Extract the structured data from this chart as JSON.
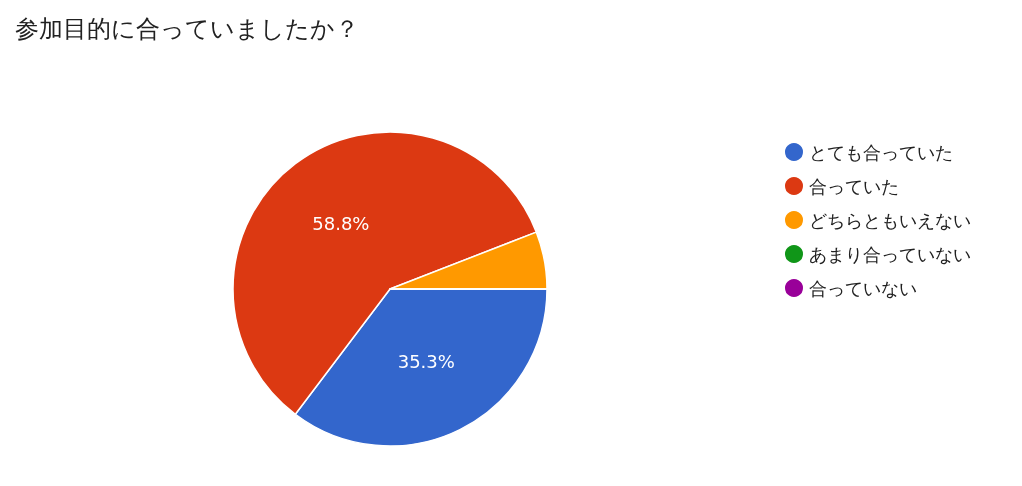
{
  "chart_data": {
    "type": "pie",
    "title": "参加目的に合っていましたか？",
    "categories": [
      "とても合っていた",
      "合っていた",
      "どちらともいえない",
      "あまり合っていない",
      "合っていない"
    ],
    "values": [
      35.3,
      58.8,
      5.9,
      0,
      0
    ],
    "colors": [
      "#3366cc",
      "#dc3912",
      "#ff9900",
      "#109618",
      "#990099"
    ],
    "value_labels": [
      "35.3%",
      "58.8%",
      null,
      null,
      null
    ],
    "legend": "right"
  }
}
